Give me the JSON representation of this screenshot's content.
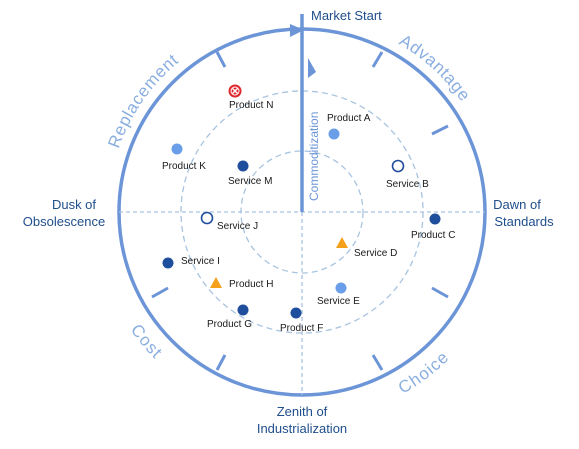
{
  "title": "Market Start",
  "axis": {
    "left_line1": "Dusk of",
    "left_line2": "Obsolescence",
    "right_line1": "Dawn of",
    "right_line2": "Standards",
    "bottom_line1": "Zenith of",
    "bottom_line2": "Industrialization",
    "vertical": "Commoditization"
  },
  "quadrants": {
    "top_left": "Replacement",
    "top_right": "Advantage",
    "bottom_left": "Cost",
    "bottom_right": "Choice"
  },
  "items": [
    {
      "label": "Product A",
      "marker": "circle-light"
    },
    {
      "label": "Service B",
      "marker": "circle-open"
    },
    {
      "label": "Product C",
      "marker": "circle-dark"
    },
    {
      "label": "Service D",
      "marker": "triangle"
    },
    {
      "label": "Service E",
      "marker": "circle-light"
    },
    {
      "label": "Product F",
      "marker": "circle-dark"
    },
    {
      "label": "Product G",
      "marker": "circle-dark"
    },
    {
      "label": "Product H",
      "marker": "triangle"
    },
    {
      "label": "Service I",
      "marker": "circle-dark"
    },
    {
      "label": "Service J",
      "marker": "circle-open"
    },
    {
      "label": "Product K",
      "marker": "circle-light"
    },
    {
      "label": "Service M",
      "marker": "circle-dark"
    },
    {
      "label": "Product N",
      "marker": "red-x-circle"
    }
  ],
  "colors": {
    "ring": "#6c95d8",
    "dashed": "#a8c4e0",
    "dark": "#1f4e9c",
    "light": "#6b9ee8",
    "triangle": "#f5a01a",
    "red": "#e0262b"
  }
}
